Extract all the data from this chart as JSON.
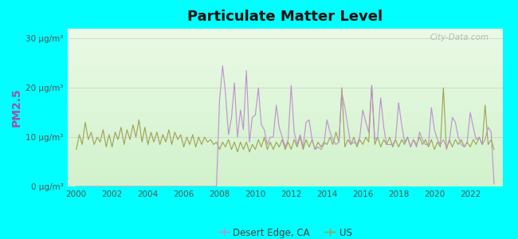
{
  "title": "Particulate Matter Level",
  "ylabel": "PM2.5",
  "background_outer": "#00FFFF",
  "ylim": [
    0,
    32
  ],
  "yticks": [
    0,
    10,
    20,
    30
  ],
  "ytick_labels": [
    "0 μg/m³",
    "10 μg/m³",
    "20 μg/m³",
    "30 μg/m³"
  ],
  "xlim_start": 1999.5,
  "xlim_end": 2023.8,
  "xticks": [
    2000,
    2002,
    2004,
    2006,
    2008,
    2010,
    2012,
    2014,
    2016,
    2018,
    2020,
    2022
  ],
  "desert_edge_color": "#bf8fcf",
  "us_color": "#a0a050",
  "desert_edge_label": "Desert Edge, CA",
  "us_label": "US",
  "watermark": "City-Data.com",
  "us_data_years": [
    2000.0,
    2000.17,
    2000.33,
    2000.5,
    2000.67,
    2000.83,
    2001.0,
    2001.17,
    2001.33,
    2001.5,
    2001.67,
    2001.83,
    2002.0,
    2002.17,
    2002.33,
    2002.5,
    2002.67,
    2002.83,
    2003.0,
    2003.17,
    2003.33,
    2003.5,
    2003.67,
    2003.83,
    2004.0,
    2004.17,
    2004.33,
    2004.5,
    2004.67,
    2004.83,
    2005.0,
    2005.17,
    2005.33,
    2005.5,
    2005.67,
    2005.83,
    2006.0,
    2006.17,
    2006.33,
    2006.5,
    2006.67,
    2006.83,
    2007.0,
    2007.17,
    2007.33,
    2007.5,
    2007.67,
    2007.83,
    2008.0,
    2008.17,
    2008.33,
    2008.5,
    2008.67,
    2008.83,
    2009.0,
    2009.17,
    2009.33,
    2009.5,
    2009.67,
    2009.83,
    2010.0,
    2010.17,
    2010.33,
    2010.5,
    2010.67,
    2010.83,
    2011.0,
    2011.17,
    2011.33,
    2011.5,
    2011.67,
    2011.83,
    2012.0,
    2012.17,
    2012.33,
    2012.5,
    2012.67,
    2012.83,
    2013.0,
    2013.17,
    2013.33,
    2013.5,
    2013.67,
    2013.83,
    2014.0,
    2014.17,
    2014.33,
    2014.5,
    2014.67,
    2014.83,
    2015.0,
    2015.17,
    2015.33,
    2015.5,
    2015.67,
    2015.83,
    2016.0,
    2016.17,
    2016.33,
    2016.5,
    2016.67,
    2016.83,
    2017.0,
    2017.17,
    2017.33,
    2017.5,
    2017.67,
    2017.83,
    2018.0,
    2018.17,
    2018.33,
    2018.5,
    2018.67,
    2018.83,
    2019.0,
    2019.17,
    2019.33,
    2019.5,
    2019.67,
    2019.83,
    2020.0,
    2020.17,
    2020.33,
    2020.5,
    2020.67,
    2020.83,
    2021.0,
    2021.17,
    2021.33,
    2021.5,
    2021.67,
    2021.83,
    2022.0,
    2022.17,
    2022.33,
    2022.5,
    2022.67,
    2022.83,
    2023.0,
    2023.17,
    2023.33
  ],
  "us_data_values": [
    7.5,
    10.5,
    8.5,
    13.0,
    9.5,
    11.0,
    8.5,
    10.0,
    9.0,
    11.5,
    8.0,
    10.5,
    8.0,
    11.0,
    9.5,
    12.0,
    8.5,
    11.5,
    9.5,
    12.5,
    10.0,
    13.5,
    9.0,
    12.0,
    8.5,
    11.0,
    9.0,
    11.0,
    8.5,
    10.5,
    9.0,
    11.5,
    8.5,
    11.0,
    9.5,
    10.5,
    8.0,
    10.0,
    8.5,
    10.5,
    8.0,
    10.0,
    8.5,
    10.0,
    9.0,
    9.5,
    8.5,
    9.0,
    7.5,
    9.0,
    8.0,
    9.5,
    7.5,
    9.0,
    7.0,
    9.0,
    7.5,
    9.0,
    7.0,
    8.5,
    7.5,
    9.5,
    8.0,
    10.0,
    7.5,
    9.0,
    7.5,
    9.0,
    8.0,
    9.5,
    7.5,
    9.0,
    7.5,
    9.5,
    8.0,
    10.0,
    7.5,
    9.5,
    8.0,
    9.5,
    7.5,
    9.0,
    8.0,
    9.0,
    8.5,
    10.0,
    8.5,
    11.0,
    9.0,
    20.0,
    8.0,
    9.5,
    8.5,
    10.0,
    8.0,
    9.5,
    8.5,
    10.0,
    9.0,
    20.5,
    8.5,
    10.0,
    8.0,
    9.5,
    8.5,
    10.0,
    8.0,
    9.5,
    8.0,
    9.5,
    8.5,
    10.0,
    8.0,
    9.5,
    8.5,
    10.0,
    8.5,
    9.5,
    8.0,
    9.5,
    7.5,
    9.0,
    8.0,
    20.0,
    7.5,
    9.5,
    8.0,
    9.5,
    8.5,
    9.5,
    8.0,
    9.0,
    8.0,
    9.5,
    8.5,
    10.0,
    8.5,
    16.5,
    8.5,
    9.5,
    7.5
  ],
  "de_data_years": [
    2000.0,
    2000.17,
    2000.33,
    2000.5,
    2000.67,
    2000.83,
    2001.0,
    2001.17,
    2001.33,
    2001.5,
    2001.67,
    2001.83,
    2002.0,
    2002.17,
    2002.33,
    2002.5,
    2002.67,
    2002.83,
    2003.0,
    2003.17,
    2003.33,
    2003.5,
    2003.67,
    2003.83,
    2004.0,
    2004.17,
    2004.33,
    2004.5,
    2004.67,
    2004.83,
    2005.0,
    2005.17,
    2005.33,
    2005.5,
    2005.67,
    2005.83,
    2006.0,
    2006.17,
    2006.33,
    2006.5,
    2006.67,
    2006.83,
    2007.0,
    2007.17,
    2007.33,
    2007.5,
    2007.67,
    2007.83,
    2008.0,
    2008.17,
    2008.33,
    2008.5,
    2008.67,
    2008.83,
    2009.0,
    2009.17,
    2009.33,
    2009.5,
    2009.67,
    2009.83,
    2010.0,
    2010.17,
    2010.33,
    2010.5,
    2010.67,
    2010.83,
    2011.0,
    2011.17,
    2011.33,
    2011.5,
    2011.67,
    2011.83,
    2012.0,
    2012.17,
    2012.33,
    2012.5,
    2012.67,
    2012.83,
    2013.0,
    2013.17,
    2013.33,
    2013.5,
    2013.67,
    2013.83,
    2014.0,
    2014.17,
    2014.33,
    2014.5,
    2014.67,
    2014.83,
    2015.0,
    2015.17,
    2015.33,
    2015.5,
    2015.67,
    2015.83,
    2016.0,
    2016.17,
    2016.33,
    2016.5,
    2016.67,
    2016.83,
    2017.0,
    2017.17,
    2017.33,
    2017.5,
    2017.67,
    2017.83,
    2018.0,
    2018.17,
    2018.33,
    2018.5,
    2018.67,
    2018.83,
    2019.0,
    2019.17,
    2019.33,
    2019.5,
    2019.67,
    2019.83,
    2020.0,
    2020.17,
    2020.33,
    2020.5,
    2020.67,
    2020.83,
    2021.0,
    2021.17,
    2021.33,
    2021.5,
    2021.67,
    2021.83,
    2022.0,
    2022.17,
    2022.33,
    2022.5,
    2022.67,
    2022.83,
    2023.0,
    2023.17,
    2023.33
  ],
  "de_data_values": [
    0.0,
    0.0,
    0.0,
    0.0,
    0.0,
    0.0,
    0.0,
    0.0,
    0.0,
    0.0,
    0.0,
    0.0,
    0.0,
    0.0,
    0.0,
    0.0,
    0.0,
    0.0,
    0.0,
    0.0,
    0.0,
    0.0,
    0.0,
    0.0,
    0.0,
    0.0,
    0.0,
    0.0,
    0.0,
    0.0,
    0.0,
    0.0,
    0.0,
    0.0,
    0.0,
    0.0,
    0.0,
    0.0,
    0.0,
    0.0,
    0.0,
    0.0,
    0.0,
    0.0,
    0.0,
    0.0,
    0.0,
    0.0,
    17.5,
    24.5,
    19.0,
    10.5,
    14.0,
    21.0,
    10.0,
    15.5,
    11.5,
    23.5,
    9.0,
    14.0,
    14.5,
    20.0,
    12.5,
    11.5,
    8.5,
    10.0,
    10.0,
    16.5,
    12.0,
    10.0,
    8.0,
    9.5,
    20.5,
    11.0,
    8.5,
    10.5,
    8.0,
    13.0,
    13.5,
    9.5,
    7.5,
    8.0,
    7.5,
    8.5,
    13.5,
    11.0,
    9.5,
    8.5,
    9.0,
    19.0,
    16.0,
    12.0,
    8.5,
    9.0,
    8.5,
    10.0,
    15.5,
    13.0,
    11.0,
    20.5,
    9.5,
    10.0,
    18.0,
    12.0,
    8.5,
    8.5,
    8.5,
    9.5,
    17.0,
    12.5,
    9.0,
    10.0,
    8.0,
    9.5,
    8.0,
    11.0,
    9.5,
    8.5,
    8.5,
    16.0,
    11.5,
    9.5,
    8.5,
    9.5,
    8.0,
    9.0,
    14.0,
    13.0,
    10.0,
    8.5,
    8.0,
    9.0,
    15.0,
    12.0,
    9.5,
    10.0,
    8.5,
    9.5,
    12.0,
    11.0,
    0.5
  ]
}
